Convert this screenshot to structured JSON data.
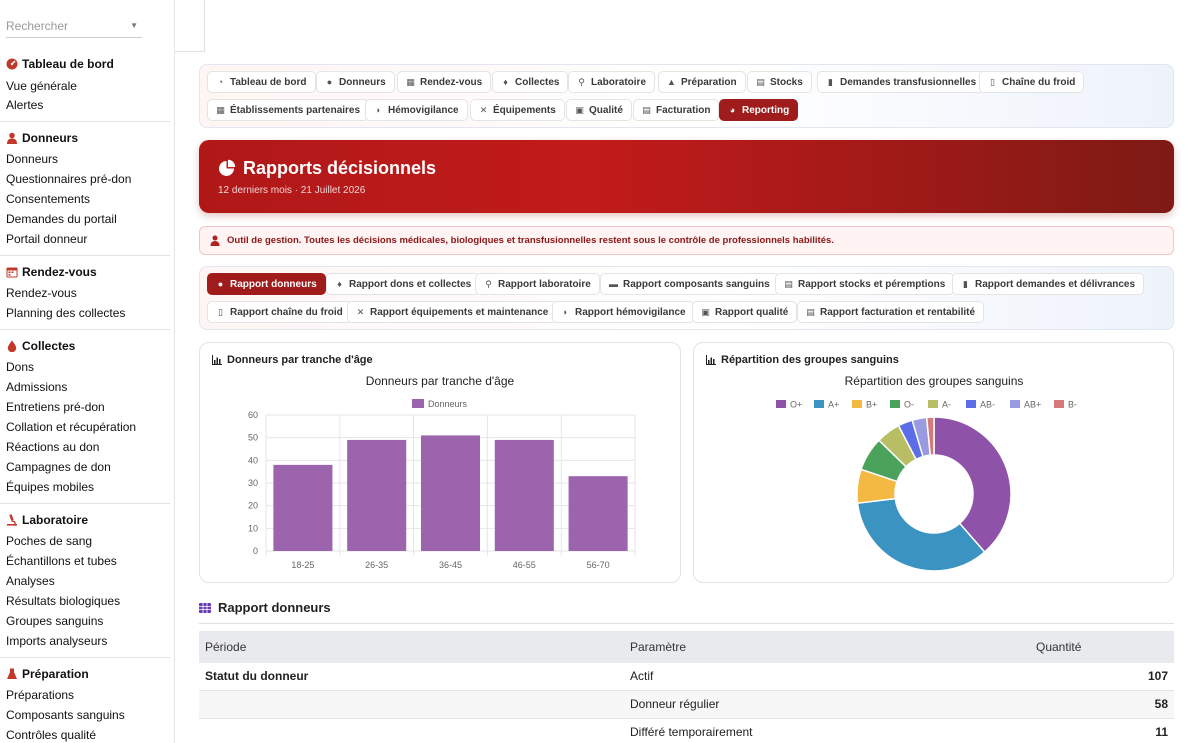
{
  "sidebar": {
    "search_placeholder": "Rechercher",
    "sections": [
      {
        "title": "Tableau de bord",
        "items": [
          "Vue générale",
          "Alertes"
        ]
      },
      {
        "title": "Donneurs",
        "items": [
          "Donneurs",
          "Questionnaires pré-don",
          "Consentements",
          "Demandes du portail",
          "Portail donneur"
        ]
      },
      {
        "title": "Rendez-vous",
        "items": [
          "Rendez-vous",
          "Planning des collectes"
        ]
      },
      {
        "title": "Collectes",
        "items": [
          "Dons",
          "Admissions",
          "Entretiens pré-don",
          "Collation et récupération",
          "Réactions au don",
          "Campagnes de don",
          "Équipes mobiles"
        ]
      },
      {
        "title": "Laboratoire",
        "items": [
          "Poches de sang",
          "Échantillons et tubes",
          "Analyses",
          "Résultats biologiques",
          "Groupes sanguins",
          "Imports analyseurs"
        ]
      },
      {
        "title": "Préparation",
        "items": [
          "Préparations",
          "Composants sanguins",
          "Contrôles qualité"
        ]
      }
    ]
  },
  "modules": [
    "Tableau de bord",
    "Donneurs",
    "Rendez-vous",
    "Collectes",
    "Laboratoire",
    "Préparation",
    "Stocks",
    "Demandes transfusionnelles",
    "Chaîne du froid",
    "Établissements partenaires",
    "Hémovigilance",
    "Équipements",
    "Qualité",
    "Facturation",
    "Reporting"
  ],
  "active_module": "Reporting",
  "hero": {
    "title": "Rapports décisionnels",
    "subtitle": "12 derniers mois · 21 Juillet 2026"
  },
  "alert_text": "Outil de gestion. Toutes les décisions médicales, biologiques et transfusionnelles restent sous le contrôle de professionnels habilités.",
  "reports": [
    "Rapport donneurs",
    "Rapport dons et collectes",
    "Rapport laboratoire",
    "Rapport composants sanguins",
    "Rapport stocks et péremptions",
    "Rapport demandes et délivrances",
    "Rapport chaîne du froid",
    "Rapport équipements et maintenance",
    "Rapport hémovigilance",
    "Rapport qualité",
    "Rapport facturation et rentabilité"
  ],
  "active_report": "Rapport donneurs",
  "colors": {
    "brand": "#a01c1c",
    "bar": "#9b64ad"
  },
  "chart_cards": {
    "age_card_title": "Donneurs par tranche d'âge",
    "groups_card_title": "Répartition des groupes sanguins"
  },
  "chart_data": [
    {
      "type": "bar",
      "title": "Donneurs par tranche d'âge",
      "categories": [
        "18-25",
        "26-35",
        "36-45",
        "46-55",
        "56-70"
      ],
      "series": [
        {
          "name": "Donneurs",
          "values": [
            38,
            49,
            51,
            49,
            33
          ],
          "color": "#9b64ad"
        }
      ],
      "ylim": [
        0,
        60
      ],
      "yticks": [
        0,
        10,
        20,
        30,
        40,
        50,
        60
      ],
      "grid": true,
      "legend": "top"
    },
    {
      "type": "pie",
      "title": "Répartition des groupes sanguins",
      "labels": [
        "O+",
        "A+",
        "B+",
        "O-",
        "A-",
        "AB-",
        "AB+",
        "B-"
      ],
      "values": [
        38,
        34,
        7,
        7,
        5,
        3,
        3,
        1.5
      ],
      "colors": [
        "#8e52a8",
        "#3a93c0",
        "#f4b942",
        "#4ba25a",
        "#b9bd63",
        "#5b6ee8",
        "#9a9ae0",
        "#d47a7a"
      ],
      "donut": true,
      "legend": "top"
    }
  ],
  "report": {
    "title": "Rapport donneurs",
    "columns": [
      "Période",
      "Paramètre",
      "Quantité"
    ],
    "rows": [
      {
        "periode": "Statut du donneur",
        "parametre": "Actif",
        "quantite": "107"
      },
      {
        "periode": "",
        "parametre": "Donneur régulier",
        "quantite": "58"
      },
      {
        "periode": "",
        "parametre": "Différé temporairement",
        "quantite": "11"
      }
    ]
  }
}
